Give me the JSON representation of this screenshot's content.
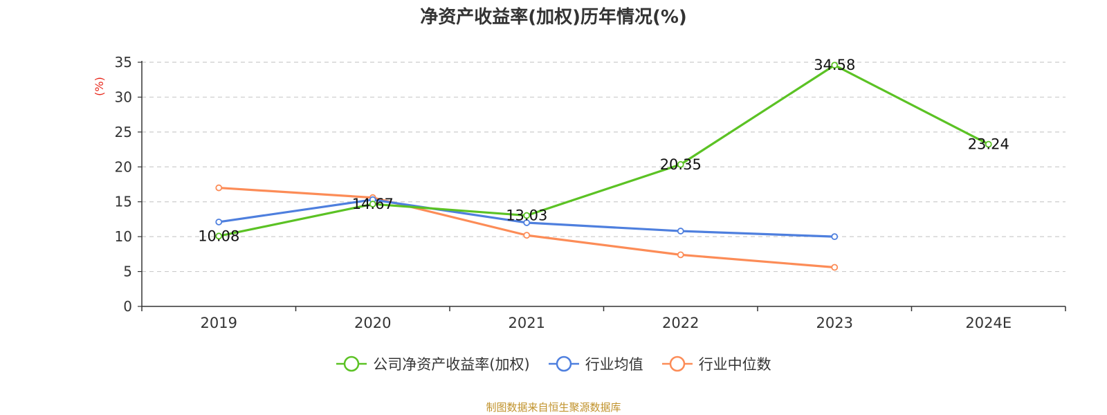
{
  "title": "净资产收益率(加权)历年情况(%)",
  "source_note": "制图数据来自恒生聚源数据库",
  "chart_data": {
    "type": "line",
    "title": "净资产收益率(加权)历年情况(%)",
    "ylabel": "(%)",
    "xlabel": "",
    "categories": [
      "2019",
      "2020",
      "2021",
      "2022",
      "2023",
      "2024E"
    ],
    "ylim": [
      0,
      35
    ],
    "yticks": [
      0,
      5,
      10,
      15,
      20,
      25,
      30,
      35
    ],
    "grid": true,
    "legend_position": "bottom",
    "series": [
      {
        "name": "公司净资产收益率(加权)",
        "color": "#5bc224",
        "values": [
          10.08,
          14.67,
          13.03,
          20.35,
          34.58,
          23.24
        ],
        "labels": [
          "10.08",
          "14.67",
          "13.03",
          "20.35",
          "34.58",
          "23.24"
        ],
        "show_labels": true
      },
      {
        "name": "行业均值",
        "color": "#4e7fde",
        "values": [
          12.1,
          15.3,
          12.0,
          10.8,
          10.0,
          null
        ],
        "show_labels": false
      },
      {
        "name": "行业中位数",
        "color": "#fc8c57",
        "values": [
          17.0,
          15.6,
          10.2,
          7.4,
          5.6,
          null
        ],
        "show_labels": false
      }
    ]
  }
}
